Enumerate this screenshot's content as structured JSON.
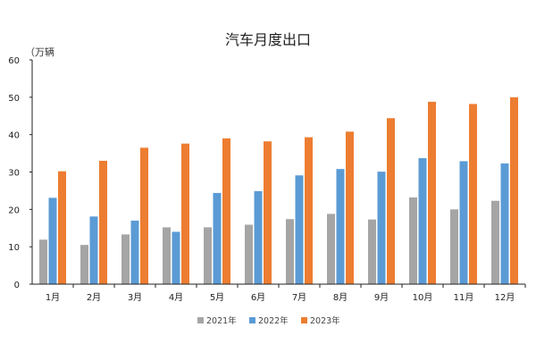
{
  "chart_data": {
    "type": "bar",
    "title": "汽车月度出口",
    "unit_label": "（万辆",
    "categories": [
      "1月",
      "2月",
      "3月",
      "4月",
      "5月",
      "6月",
      "7月",
      "8月",
      "9月",
      "10月",
      "11月",
      "12月"
    ],
    "series": [
      {
        "name": "2021年",
        "color": "#a5a5a5",
        "values": [
          11.9,
          10.5,
          13.3,
          15.2,
          15.2,
          15.9,
          17.4,
          18.8,
          17.3,
          23.2,
          20.0,
          22.3
        ]
      },
      {
        "name": "2022年",
        "color": "#5b9bd5",
        "values": [
          23.1,
          18.1,
          17.0,
          14.0,
          24.4,
          24.9,
          29.1,
          30.8,
          30.1,
          33.7,
          32.9,
          32.3
        ]
      },
      {
        "name": "2023年",
        "color": "#ed7d31",
        "values": [
          30.2,
          33.0,
          36.5,
          37.6,
          39.0,
          38.2,
          39.3,
          40.8,
          44.4,
          48.8,
          48.2,
          50.0
        ]
      }
    ],
    "ylim": [
      0,
      60
    ],
    "yticks": [
      0,
      10,
      20,
      30,
      40,
      50,
      60
    ],
    "grid": false,
    "legend_position": "bottom"
  }
}
